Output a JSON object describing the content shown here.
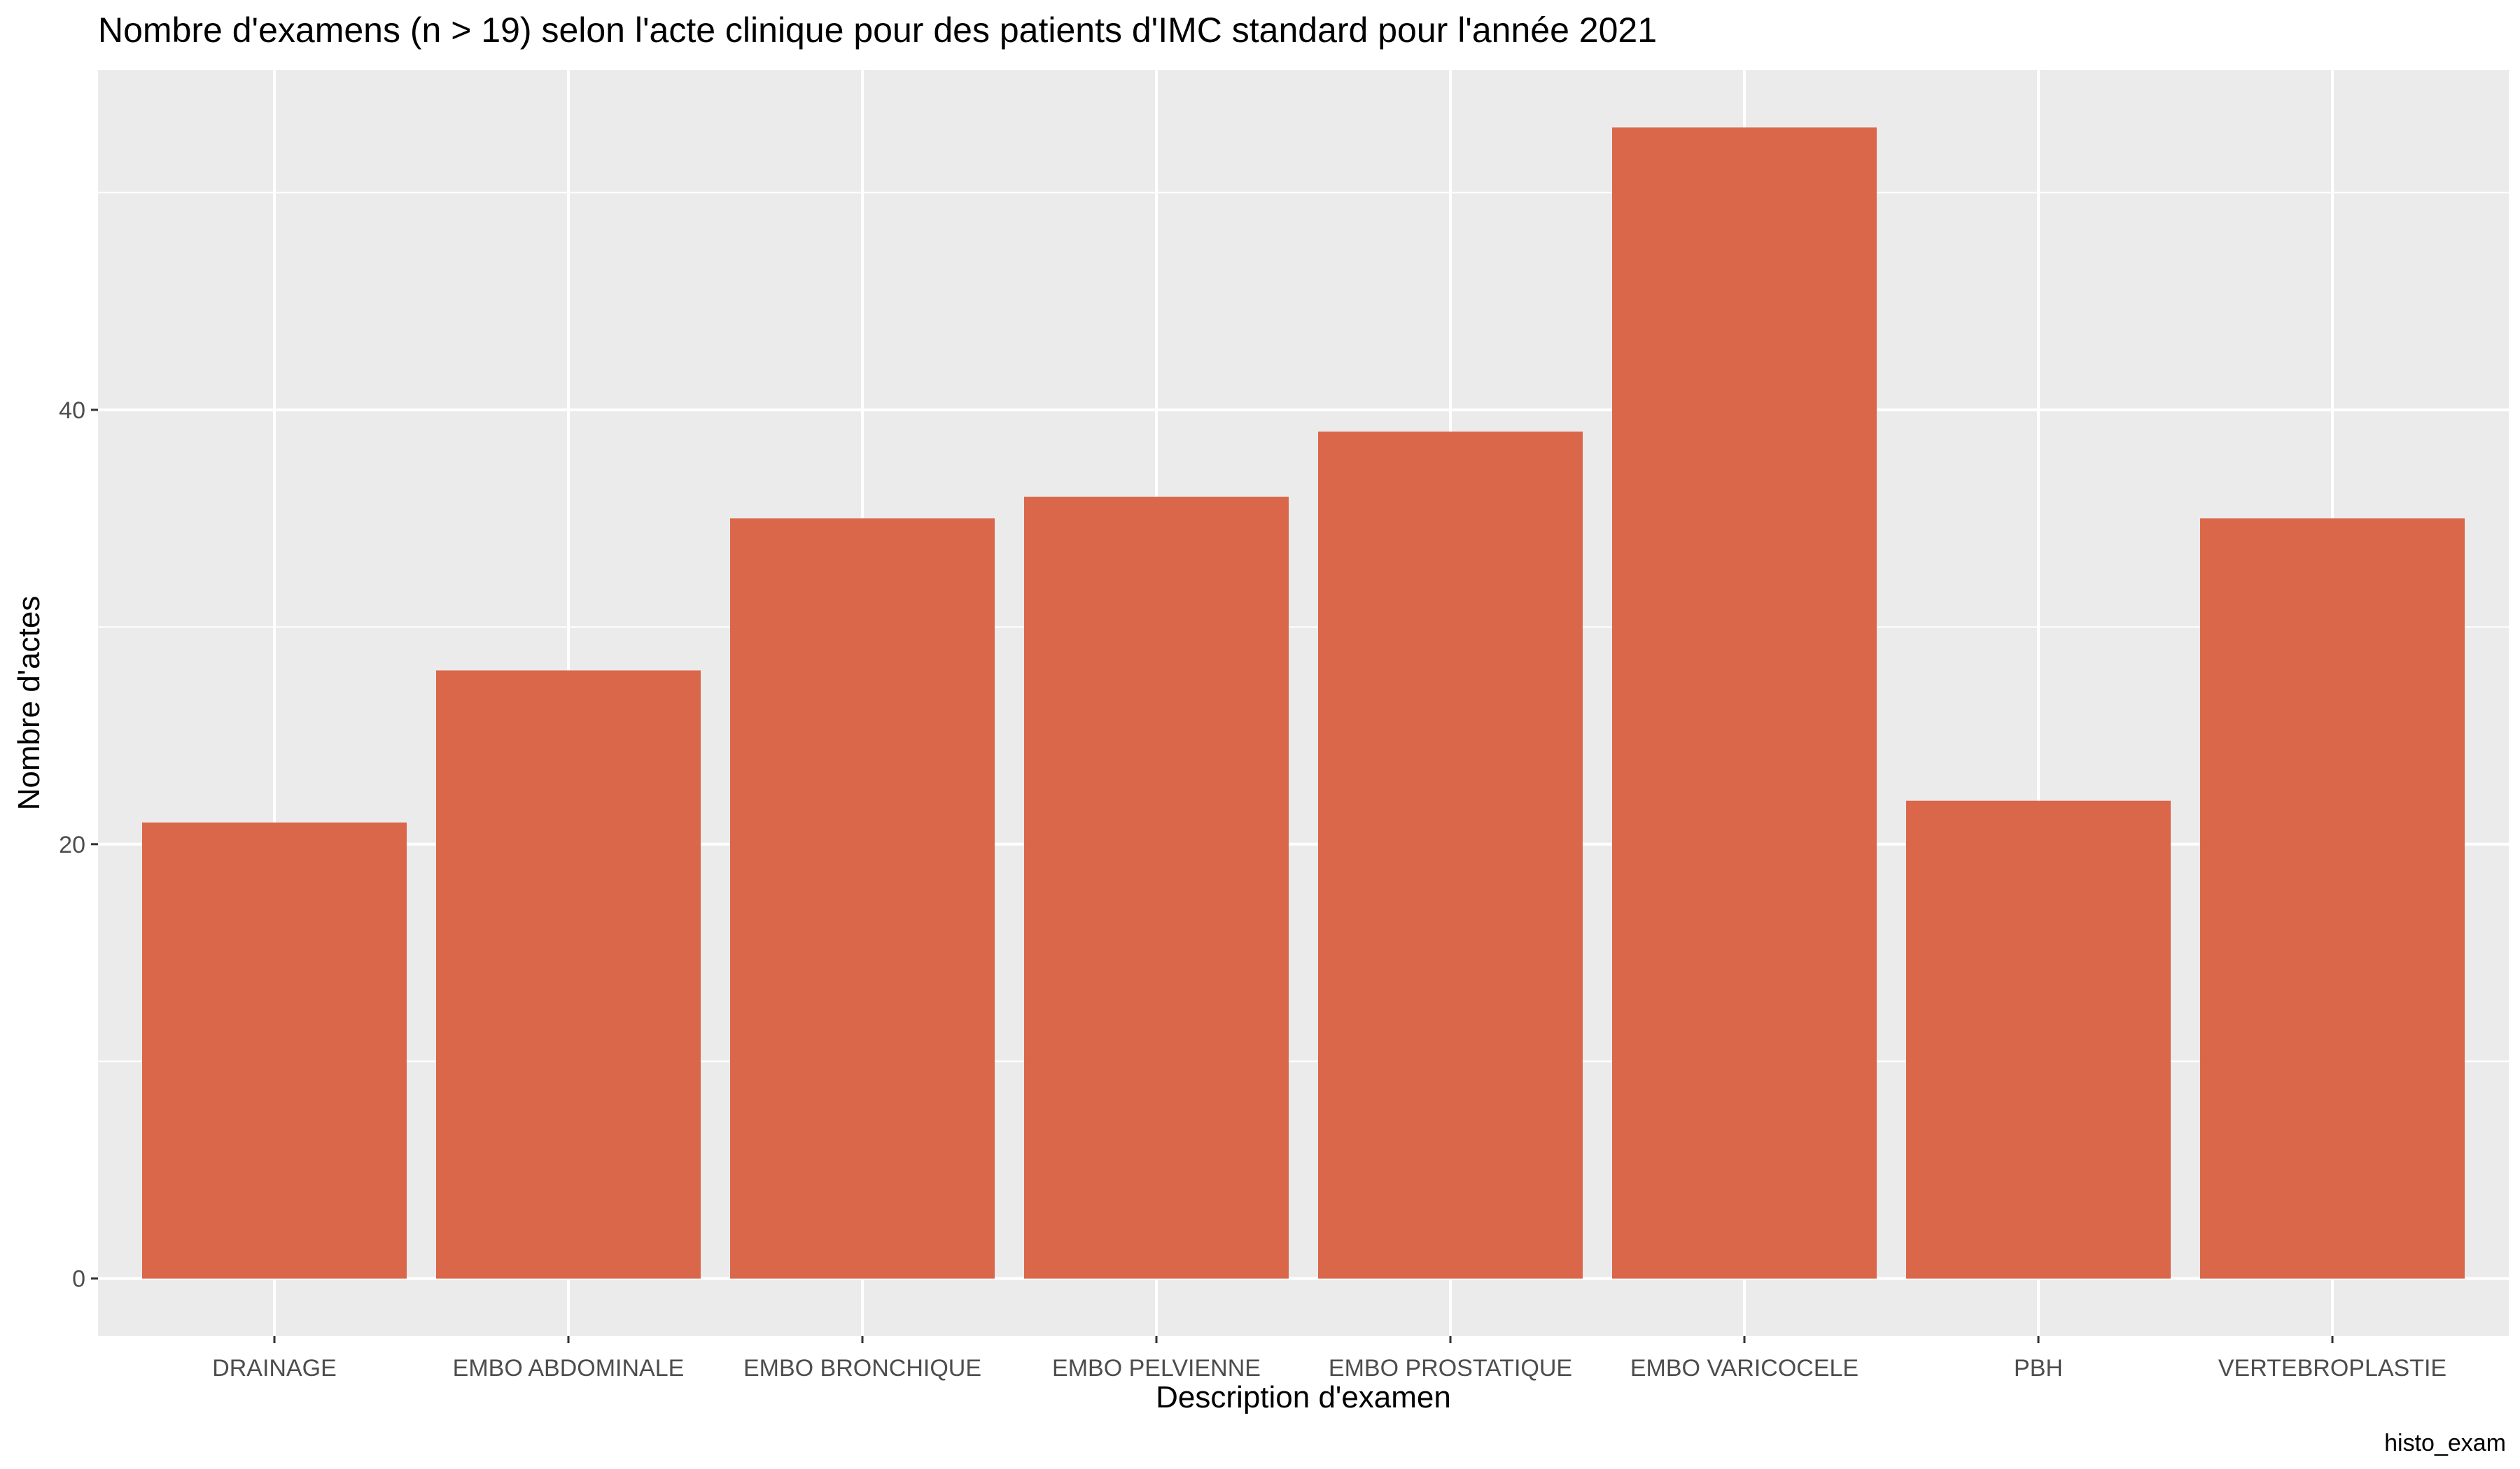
{
  "chart_data": {
    "type": "bar",
    "title": "Nombre d'examens (n > 19) selon l'acte clinique pour des patients d'IMC standard pour l'année 2021",
    "xlabel": "Description d'examen",
    "ylabel": "Nombre d'actes",
    "caption": "histo_exam",
    "categories": [
      "DRAINAGE",
      "EMBO ABDOMINALE",
      "EMBO BRONCHIQUE",
      "EMBO PELVIENNE",
      "EMBO PROSTATIQUE",
      "EMBO VARICOCELE",
      "PBH",
      "VERTEBROPLASTIE"
    ],
    "values": [
      21,
      28,
      35,
      36,
      39,
      53,
      22,
      35
    ],
    "ylim": [
      -2.65,
      55.65
    ],
    "yticks": [
      0,
      20,
      40
    ],
    "yticks_minor": [
      10,
      30,
      50
    ],
    "grid": true,
    "legend": "none",
    "bar_color": "#DA674A",
    "panel_color": "#EBEBEB",
    "grid_color": "#FFFFFF"
  }
}
